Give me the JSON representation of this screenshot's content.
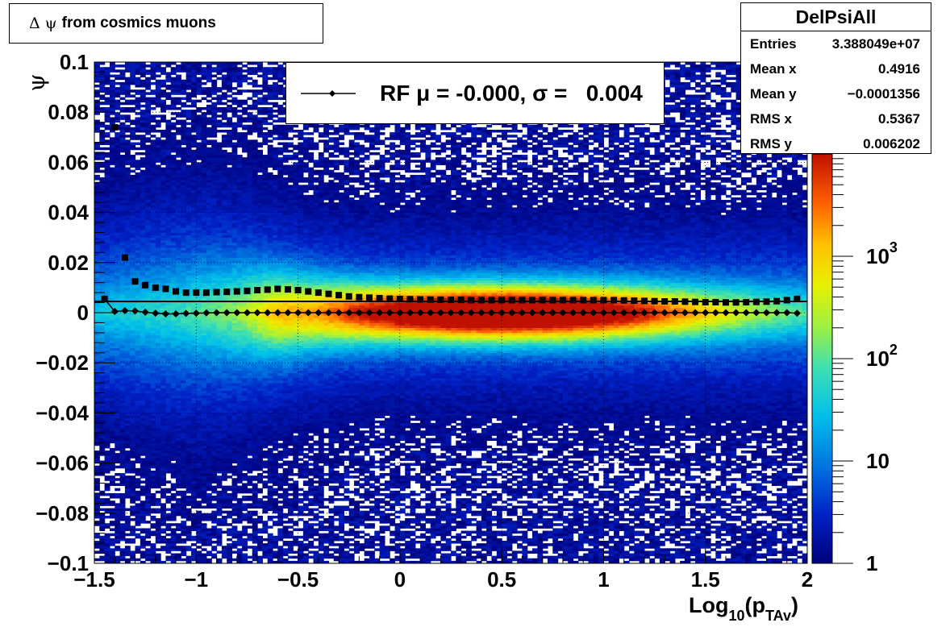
{
  "title": {
    "symbol": "Δ ψ",
    "text": "from cosmics muons"
  },
  "legend": {
    "entry": "RF μ = -0.000, σ =   0.004"
  },
  "stats": {
    "name": "DelPsiAll",
    "rows": [
      {
        "key": "Entries",
        "value": "3.388049e+07"
      },
      {
        "key": "Mean x",
        "value": "0.4916"
      },
      {
        "key": "Mean y",
        "value": "−0.0001356"
      },
      {
        "key": "RMS x",
        "value": "0.5367"
      },
      {
        "key": "RMS y",
        "value": "0.006202"
      }
    ]
  },
  "chart_data": {
    "type": "heatmap",
    "xlabel_base": "Log",
    "xlabel_sub": "10",
    "xlabel_paren_open": "(p",
    "xlabel_sub2": "TAv",
    "xlabel_paren_close": ")",
    "ylabel": "ψ",
    "xlim": [
      -1.5,
      2
    ],
    "ylim": [
      -0.1,
      0.1
    ],
    "xticks": [
      -1.5,
      -1,
      -0.5,
      0,
      0.5,
      1,
      1.5,
      2
    ],
    "xtick_labels": [
      "−1.5",
      "−1",
      "−0.5",
      "0",
      "0.5",
      "1",
      "1.5",
      "2"
    ],
    "yticks": [
      -0.1,
      -0.08,
      -0.06,
      -0.04,
      -0.02,
      0,
      0.02,
      0.04,
      0.06,
      0.08,
      0.1
    ],
    "ytick_labels": [
      "−0.1",
      "−0.08",
      "−0.06",
      "−0.04",
      "−0.02",
      "0",
      "0.02",
      "0.04",
      "0.06",
      "0.08",
      "0.1"
    ],
    "zscale": "log",
    "zlim": [
      1,
      10000
    ],
    "zticks": [
      {
        "value": 1,
        "base": "1",
        "exp": ""
      },
      {
        "value": 10,
        "base": "10",
        "exp": ""
      },
      {
        "value": 100,
        "base": "10",
        "exp": "2"
      },
      {
        "value": 1000,
        "base": "10",
        "exp": "3"
      }
    ],
    "grid": true,
    "series": [
      {
        "marker": "square",
        "x": [
          -1.45,
          -1.4,
          -1.35,
          -1.3,
          -1.25,
          -1.2,
          -1.15,
          -1.1,
          -1.05,
          -1.0,
          -0.95,
          -0.9,
          -0.85,
          -0.8,
          -0.75,
          -0.7,
          -0.65,
          -0.6,
          -0.55,
          -0.5,
          -0.45,
          -0.4,
          -0.35,
          -0.3,
          -0.25,
          -0.2,
          -0.15,
          -0.1,
          -0.05,
          0.0,
          0.05,
          0.1,
          0.15,
          0.2,
          0.25,
          0.3,
          0.35,
          0.4,
          0.45,
          0.5,
          0.55,
          0.6,
          0.65,
          0.7,
          0.75,
          0.8,
          0.85,
          0.9,
          0.95,
          1.0,
          1.05,
          1.1,
          1.15,
          1.2,
          1.25,
          1.3,
          1.35,
          1.4,
          1.45,
          1.5,
          1.55,
          1.6,
          1.65,
          1.7,
          1.75,
          1.8,
          1.85,
          1.9,
          1.95
        ],
        "y": [
          0.0055,
          0.074,
          0.022,
          0.0125,
          0.011,
          0.01,
          0.0095,
          0.0085,
          0.008,
          0.008,
          0.008,
          0.0082,
          0.0083,
          0.0085,
          0.0087,
          0.009,
          0.0092,
          0.0095,
          0.0093,
          0.009,
          0.0085,
          0.008,
          0.0075,
          0.007,
          0.0065,
          0.0062,
          0.006,
          0.0058,
          0.0056,
          0.0055,
          0.0054,
          0.0053,
          0.0052,
          0.0052,
          0.0051,
          0.0051,
          0.005,
          0.005,
          0.005,
          0.005,
          0.005,
          0.005,
          0.005,
          0.005,
          0.005,
          0.005,
          0.005,
          0.005,
          0.005,
          0.005,
          0.005,
          0.0049,
          0.0048,
          0.0047,
          0.0046,
          0.0045,
          0.0045,
          0.0044,
          0.0043,
          0.0042,
          0.0042,
          0.0041,
          0.0041,
          0.0042,
          0.0043,
          0.0044,
          0.0046,
          0.005,
          0.0055
        ]
      },
      {
        "marker": "diamond",
        "x": [
          -1.45,
          -1.4,
          -1.35,
          -1.3,
          -1.25,
          -1.2,
          -1.15,
          -1.1,
          -1.05,
          -1.0,
          -0.95,
          -0.9,
          -0.85,
          -0.8,
          -0.75,
          -0.7,
          -0.65,
          -0.6,
          -0.55,
          -0.5,
          -0.45,
          -0.4,
          -0.35,
          -0.3,
          -0.25,
          -0.2,
          -0.15,
          -0.1,
          -0.05,
          0.0,
          0.05,
          0.1,
          0.15,
          0.2,
          0.25,
          0.3,
          0.35,
          0.4,
          0.45,
          0.5,
          0.55,
          0.6,
          0.65,
          0.7,
          0.75,
          0.8,
          0.85,
          0.9,
          0.95,
          1.0,
          1.05,
          1.1,
          1.15,
          1.2,
          1.25,
          1.3,
          1.35,
          1.4,
          1.45,
          1.5,
          1.55,
          1.6,
          1.65,
          1.7,
          1.75,
          1.8,
          1.85,
          1.9,
          1.95
        ],
        "y": [
          0.0055,
          0.0005,
          0.0008,
          0.0007,
          0.0002,
          -0.0002,
          -0.0005,
          -0.0005,
          -0.0003,
          -0.0002,
          -0.0001,
          0.0,
          0.0,
          0.0,
          0.0,
          0.0,
          0.0,
          0.0,
          0.0,
          0.0,
          0.0,
          0.0,
          0.0,
          0.0,
          0.0,
          0.0,
          0.0,
          0.0,
          0.0,
          0.0,
          0.0,
          0.0,
          0.0,
          0.0,
          0.0,
          0.0,
          0.0,
          0.0,
          0.0,
          0.0,
          0.0,
          0.0,
          0.0,
          0.0,
          0.0,
          0.0,
          0.0,
          0.0,
          0.0,
          0.0,
          0.0,
          0.0,
          0.0,
          0.0,
          0.0,
          0.0,
          0.0,
          0.0,
          0.0,
          0.0,
          0.0,
          0.0,
          0.0,
          0.0,
          0.0,
          0.0,
          0.0,
          0.0,
          -0.0002
        ]
      }
    ],
    "fit_line_y": 0.0045
  }
}
